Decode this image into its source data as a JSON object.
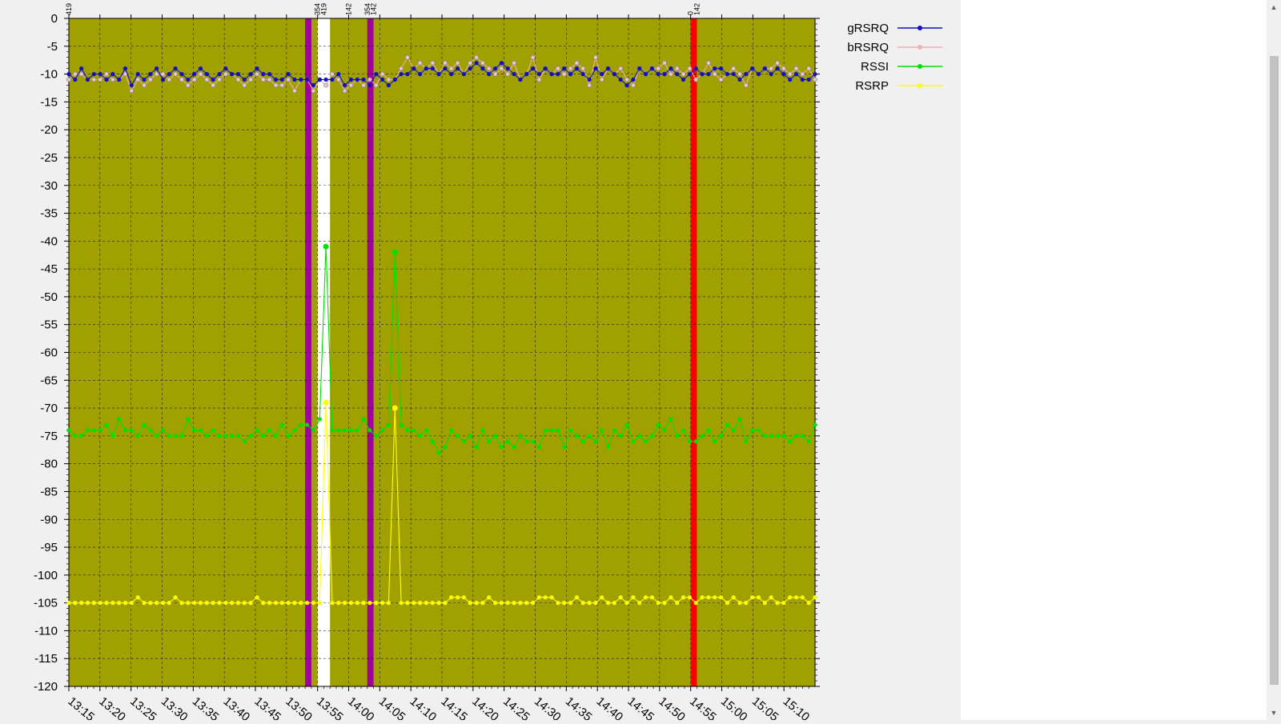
{
  "chart_data": {
    "type": "line",
    "title": "",
    "xlabel": "",
    "ylabel": "",
    "ylim": [
      -120,
      0
    ],
    "yticks": [
      0,
      -5,
      -10,
      -15,
      -20,
      -25,
      -30,
      -35,
      -40,
      -45,
      -50,
      -55,
      -60,
      -65,
      -70,
      -75,
      -80,
      -85,
      -90,
      -95,
      -100,
      -105,
      -110,
      -115,
      -120
    ],
    "x_tick_labels": [
      "13:15",
      "13:20",
      "13:25",
      "13:30",
      "13:35",
      "13:40",
      "13:45",
      "13:50",
      "13:55",
      "14:00",
      "14:05",
      "14:10",
      "14:15",
      "14:20",
      "14:25",
      "14:30",
      "14:35",
      "14:40",
      "14:45",
      "14:50",
      "14:55",
      "15:00",
      "15:05",
      "15:10"
    ],
    "x_start": "13:15",
    "x_end": "15:15",
    "grid": true,
    "legend_position": "right",
    "background_color": "#a0a000",
    "series": [
      {
        "name": "gRSRQ",
        "color": "#1010c0",
        "marker": "circle",
        "values": [
          -10,
          -11,
          -9,
          -11,
          -10,
          -10,
          -11,
          -10,
          -11,
          -9,
          -12,
          -10,
          -11,
          -10,
          -9,
          -11,
          -10,
          -9,
          -10,
          -11,
          -10,
          -9,
          -10,
          -11,
          -10,
          -9,
          -10,
          -10,
          -11,
          -10,
          -9,
          -10,
          -10,
          -11,
          -11,
          -10,
          -11,
          -11,
          -11,
          -12,
          -11,
          -11,
          -11,
          -10,
          -12,
          -11,
          -11,
          -11,
          -12,
          -10,
          -11,
          -12,
          -11,
          -10,
          -10,
          -9,
          -10,
          -9,
          -9,
          -10,
          -9,
          -10,
          -9,
          -10,
          -9,
          -8,
          -9,
          -10,
          -9,
          -8,
          -9,
          -10,
          -11,
          -10,
          -9,
          -10,
          -9,
          -10,
          -10,
          -9,
          -10,
          -9,
          -10,
          -11,
          -9,
          -10,
          -9,
          -10,
          -11,
          -12,
          -11,
          -9,
          -10,
          -9,
          -10,
          -10,
          -9,
          -10,
          -11,
          -10,
          -9,
          -10,
          -10,
          -9,
          -9,
          -10,
          -10,
          -11,
          -10,
          -9,
          -10,
          -9,
          -10,
          -9,
          -10,
          -11,
          -10,
          -11,
          -11,
          -10
        ]
      },
      {
        "name": "bRSRQ",
        "color": "#f0b0b0",
        "marker": "circle",
        "values": [
          -11,
          -10,
          -10,
          -11,
          -11,
          -11,
          -10,
          -11,
          -11,
          -10,
          -13,
          -11,
          -12,
          -11,
          -10,
          -10,
          -11,
          -10,
          -11,
          -12,
          -11,
          -10,
          -11,
          -12,
          -11,
          -10,
          -10,
          -11,
          -12,
          -11,
          -10,
          -11,
          -11,
          -12,
          -12,
          -11,
          -13,
          -11,
          -11,
          -13,
          -11,
          -12,
          -10,
          -11,
          -13,
          -12,
          -11,
          -12,
          -11,
          -12,
          -10,
          -11,
          -11,
          -9,
          -7,
          -9,
          -8,
          -9,
          -8,
          -10,
          -8,
          -9,
          -8,
          -10,
          -8,
          -7,
          -8,
          -9,
          -10,
          -9,
          -10,
          -8,
          -11,
          -10,
          -7,
          -11,
          -9,
          -10,
          -9,
          -10,
          -9,
          -8,
          -9,
          -12,
          -7,
          -11,
          -9,
          -10,
          -9,
          -11,
          -12,
          -9,
          -10,
          -9,
          -9,
          -8,
          -10,
          -9,
          -10,
          -9,
          -11,
          -10,
          -8,
          -10,
          -11,
          -10,
          -9,
          -10,
          -12,
          -9,
          -10,
          -9,
          -9,
          -8,
          -9,
          -10,
          -9,
          -10,
          -9,
          -11
        ]
      },
      {
        "name": "RSSI",
        "color": "#00e000",
        "marker": "circle",
        "values": [
          -74,
          -75,
          -75,
          -74,
          -74,
          -74,
          -73,
          -75,
          -72,
          -74,
          -74,
          -75,
          -73,
          -74,
          -75,
          -74,
          -75,
          -75,
          -75,
          -72,
          -74,
          -74,
          -75,
          -74,
          -75,
          -75,
          -75,
          -75,
          -76,
          -75,
          -74,
          -75,
          -74,
          -75,
          -73,
          -75,
          -74,
          -73,
          -73,
          -74,
          -72,
          -41,
          -74,
          -74,
          -74,
          -74,
          -74,
          -72,
          -74,
          -75,
          -74,
          -73,
          -42,
          -73,
          -74,
          -74,
          -75,
          -74,
          -76,
          -78,
          -77,
          -74,
          -75,
          -76,
          -75,
          -77,
          -74,
          -76,
          -75,
          -77,
          -76,
          -77,
          -75,
          -76,
          -76,
          -77,
          -74,
          -74,
          -74,
          -77,
          -74,
          -75,
          -76,
          -75,
          -76,
          -74,
          -77,
          -74,
          -75,
          -73,
          -76,
          -75,
          -76,
          -75,
          -73,
          -74,
          -72,
          -75,
          -74,
          -76,
          -76,
          -75,
          -74,
          -76,
          -75,
          -73,
          -74,
          -72,
          -76,
          -74,
          -74,
          -75,
          -75,
          -75,
          -75,
          -76,
          -75,
          -75,
          -76,
          -73
        ]
      },
      {
        "name": "RSRP",
        "color": "#ffff00",
        "marker": "circle",
        "values": [
          -105,
          -105,
          -105,
          -105,
          -105,
          -105,
          -105,
          -105,
          -105,
          -105,
          -105,
          -104,
          -105,
          -105,
          -105,
          -105,
          -105,
          -104,
          -105,
          -105,
          -105,
          -105,
          -105,
          -105,
          -105,
          -105,
          -105,
          -105,
          -105,
          -105,
          -104,
          -105,
          -105,
          -105,
          -105,
          -105,
          -105,
          -105,
          -105,
          -105,
          -105,
          -69,
          -105,
          -105,
          -105,
          -105,
          -105,
          -105,
          -105,
          -105,
          -105,
          -105,
          -70,
          -105,
          -105,
          -105,
          -105,
          -105,
          -105,
          -105,
          -105,
          -104,
          -104,
          -104,
          -105,
          -105,
          -105,
          -104,
          -105,
          -105,
          -105,
          -105,
          -105,
          -105,
          -105,
          -104,
          -104,
          -104,
          -105,
          -105,
          -105,
          -104,
          -105,
          -105,
          -105,
          -104,
          -105,
          -105,
          -104,
          -105,
          -104,
          -105,
          -104,
          -104,
          -105,
          -105,
          -104,
          -105,
          -104,
          -104,
          -105,
          -104,
          -104,
          -104,
          -104,
          -105,
          -104,
          -105,
          -105,
          -104,
          -104,
          -105,
          -104,
          -105,
          -105,
          -104,
          -104,
          -104,
          -105,
          -104
        ]
      }
    ],
    "bands": [
      {
        "start": "13:53",
        "end": "13:54",
        "color": "#a000a0",
        "labels": [
          "354"
        ]
      },
      {
        "start": "13:55",
        "end": "13:57",
        "color": "#ffffff",
        "labels": [
          "419"
        ]
      },
      {
        "start": "14:03",
        "end": "14:04",
        "color": "#a000a0",
        "labels": [
          "354",
          "142"
        ]
      },
      {
        "start": "14:55",
        "end": "14:56",
        "color": "#ff0000",
        "labels": [
          "0",
          "142"
        ]
      }
    ],
    "top_markers": [
      {
        "x": "13:15",
        "label": "419"
      },
      {
        "x": "13:55",
        "label": "354"
      },
      {
        "x": "13:56",
        "label": "419"
      },
      {
        "x": "14:00",
        "label": "142"
      },
      {
        "x": "14:03",
        "label": "354"
      },
      {
        "x": "14:04",
        "label": "142"
      },
      {
        "x": "14:55",
        "label": "0"
      },
      {
        "x": "14:56",
        "label": "142"
      }
    ]
  }
}
